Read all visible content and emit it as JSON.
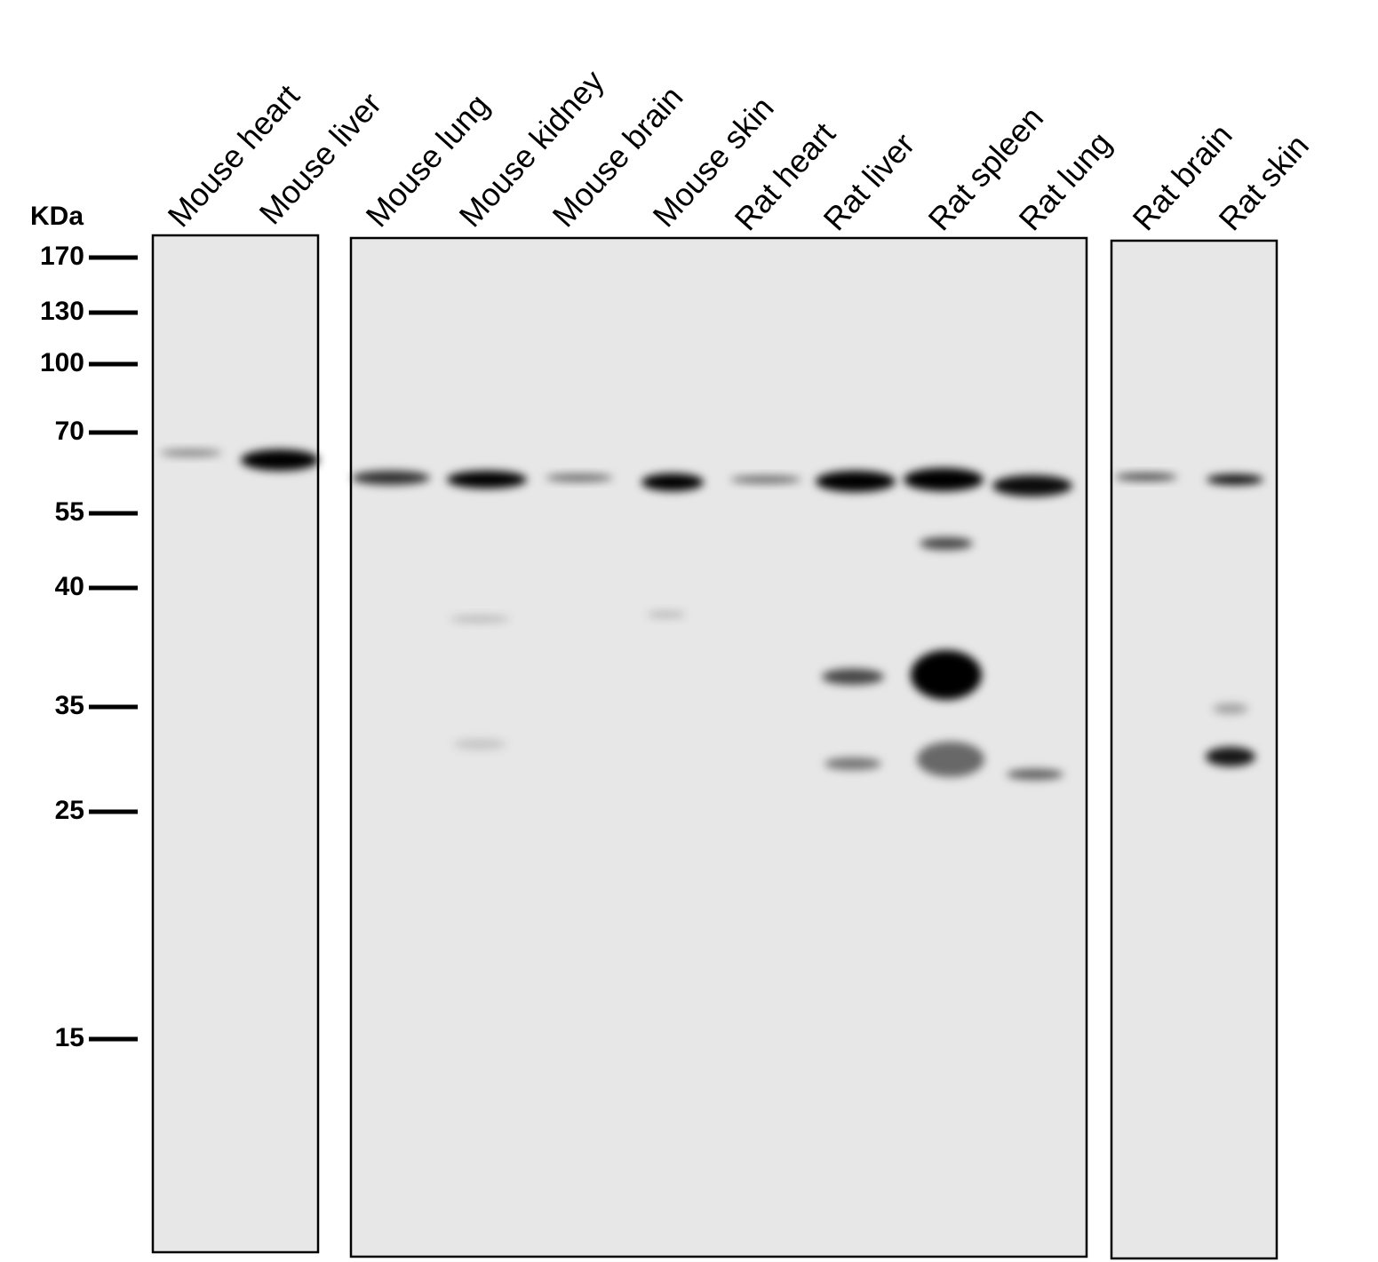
{
  "unit_label": "KDa",
  "markers": [
    170,
    130,
    100,
    70,
    55,
    40,
    35,
    25,
    15
  ],
  "lanes": [
    "Mouse heart",
    "Mouse liver",
    "Mouse lung",
    "Mouse kidney",
    "Mouse brain",
    "Mouse skin",
    "Rat heart",
    "Rat liver",
    "Rat spleen",
    "Rat lung",
    "Rat brain",
    "Rat skin"
  ]
}
